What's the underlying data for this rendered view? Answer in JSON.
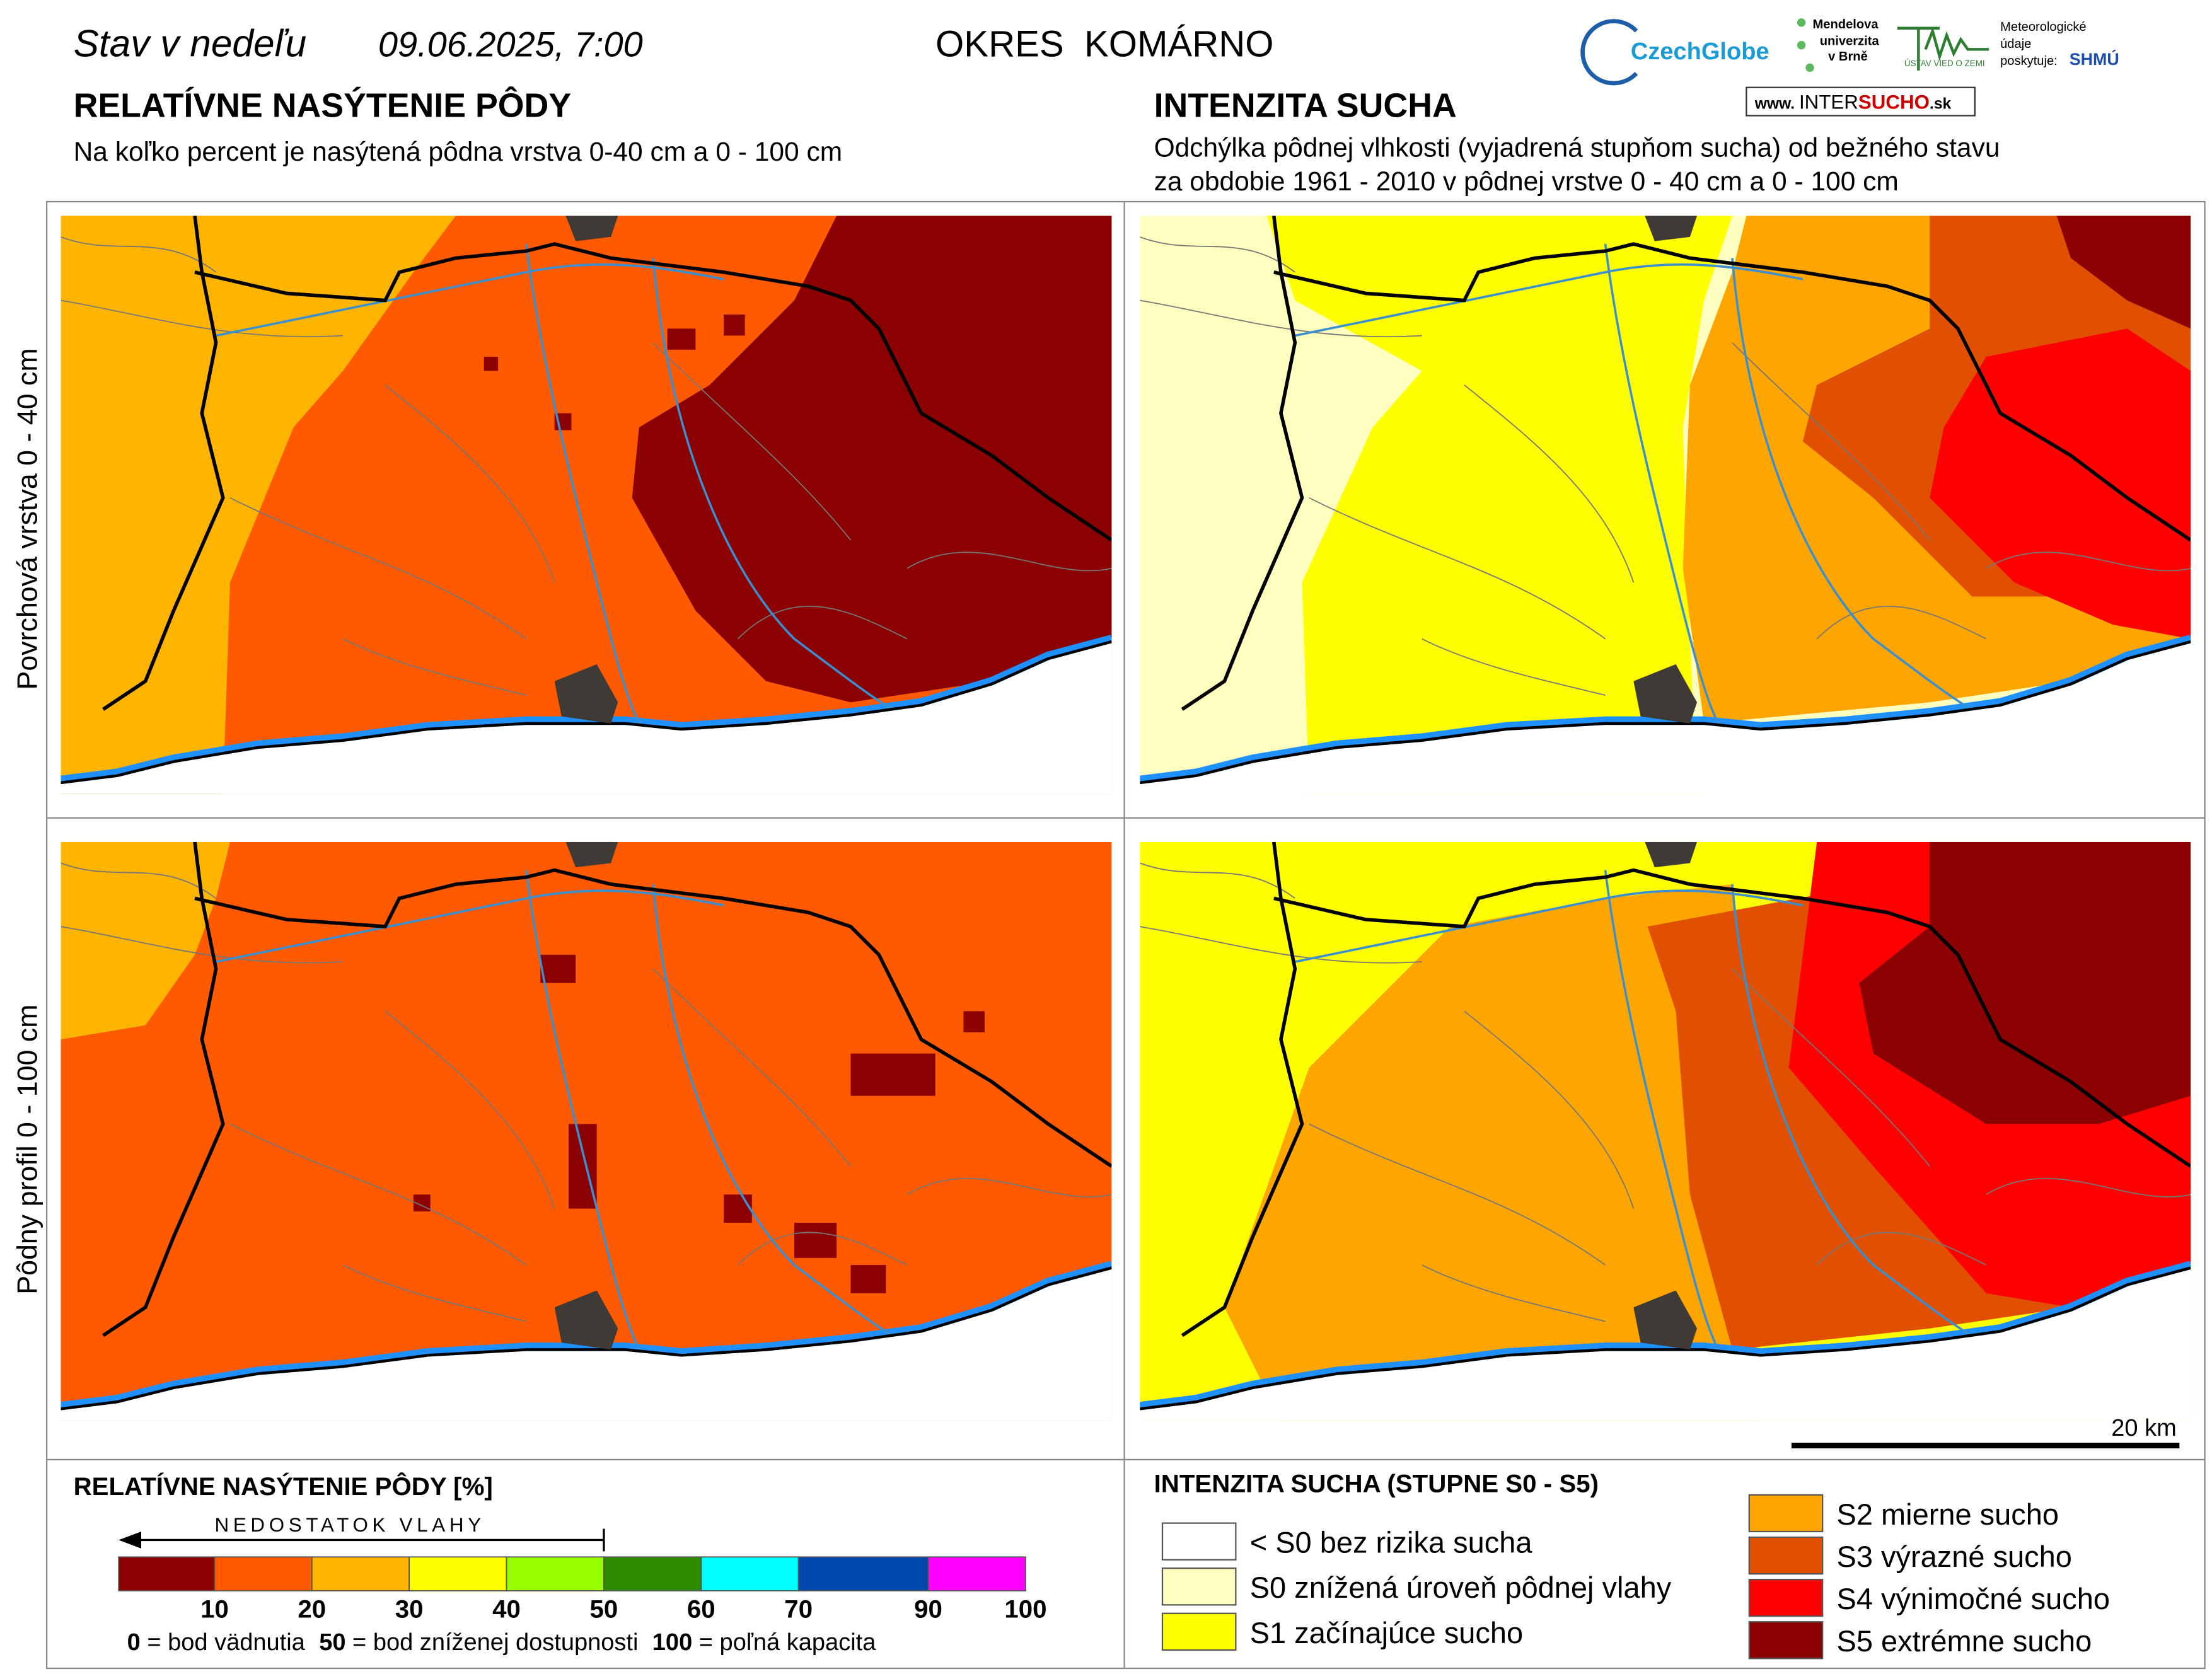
{
  "header": {
    "date_prefix": "Stav v nedeľu",
    "date": "09.06.2025, 7:00",
    "district": "OKRES  KOMÁRNO",
    "logos": {
      "czechglobe": "CzechGlobe",
      "mendel": [
        "Mendelova",
        "univerzita",
        "v Brně"
      ],
      "ustav": "ÚSTAV VIED O ZEMI",
      "meteo": [
        "Meteorologické",
        "údaje",
        "poskytuje:"
      ],
      "shmu": "SHMÚ",
      "intersucho": [
        "www.",
        "INTER",
        "SUCHO",
        ".sk"
      ]
    }
  },
  "left_panel": {
    "title": "RELATÍVNE NASÝTENIE PÔDY",
    "subtitle": "Na koľko percent je nasýtená pôdna vrstva 0-40 cm a 0 - 100 cm"
  },
  "right_panel": {
    "title": "INTENZITA SUCHA",
    "subtitle": [
      "Odchýlka pôdnej vlhkosti (vyjadrená stupňom sucha) od bežného stavu",
      "za obdobie 1961 - 2010 v pôdnej vrstve 0 - 40 cm a 0 - 100 cm"
    ]
  },
  "row_labels": [
    "Povrchová vrstva 0 - 40 cm",
    "Pôdny profil 0 - 100 cm"
  ],
  "scale_bar": "20 km",
  "legend_left": {
    "title": "RELATÍVNE NASÝTENIE PÔDY [%]",
    "arrow_label": "NEDOSTATOK VLAHY",
    "colors": [
      "#8b0000",
      "#ff5a00",
      "#ffb400",
      "#ffff00",
      "#99ff00",
      "#2e8b00",
      "#00ffff",
      "#0047ab",
      "#ff00ff"
    ],
    "ticks": [
      "10",
      "20",
      "30",
      "40",
      "50",
      "60",
      "70",
      "90",
      "100"
    ],
    "footnote": [
      {
        "key": "0",
        "text": " = bod vädnutia"
      },
      {
        "key": "50",
        "text": " = bod zníženej dostupnosti"
      },
      {
        "key": "100",
        "text": " = poľná kapacita"
      }
    ]
  },
  "legend_right": {
    "title": "INTENZITA SUCHA (STUPNE S0 - S5)",
    "items": [
      {
        "label": "< S0 bez rizika sucha",
        "color": "#ffffff"
      },
      {
        "label": "S0 znížená úroveň pôdnej vlahy",
        "color": "#ffffc0"
      },
      {
        "label": "S1 začínajúce sucho",
        "color": "#ffff00"
      },
      {
        "label": "S2 mierne sucho",
        "color": "#ffa500"
      },
      {
        "label": "S3 výrazné sucho",
        "color": "#e05000"
      },
      {
        "label": "S4 výnimočné sucho",
        "color": "#ff0000"
      },
      {
        "label": "S5 extrémne sucho",
        "color": "#8b0000"
      }
    ]
  }
}
